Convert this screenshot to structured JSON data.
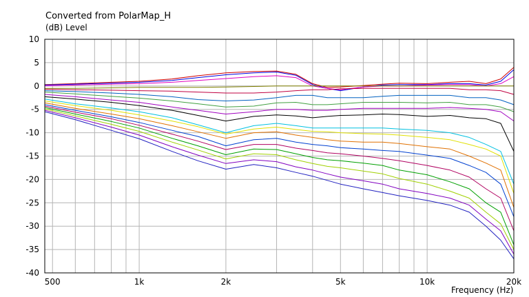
{
  "chart_data": {
    "type": "line",
    "title": "Converted from PolarMap_H",
    "ylabel": "(dB)  Level",
    "xlabel": "Frequency  (Hz)",
    "xscale": "log",
    "xlim": [
      470,
      20000
    ],
    "ylim": [
      -40,
      10
    ],
    "grid": true,
    "legend": "none",
    "x_tick_labels": [
      {
        "value": 500,
        "label": "500"
      },
      {
        "value": 1000,
        "label": "1k"
      },
      {
        "value": 2000,
        "label": "2k"
      },
      {
        "value": 5000,
        "label": "5k"
      },
      {
        "value": 10000,
        "label": "10k"
      },
      {
        "value": 20000,
        "label": "20k"
      }
    ],
    "y_ticks": [
      10,
      5,
      0,
      -5,
      -10,
      -15,
      -20,
      -25,
      -30,
      -35,
      -40
    ],
    "x_minor_grid": [
      600,
      700,
      800,
      900,
      3000,
      4000,
      6000,
      7000,
      8000,
      9000
    ],
    "x": [
      470,
      600,
      800,
      1000,
      1300,
      1600,
      2000,
      2500,
      3000,
      3500,
      4000,
      4500,
      5000,
      6000,
      7000,
      8000,
      10000,
      12000,
      14000,
      16000,
      18000,
      20000
    ],
    "series": [
      {
        "color": "#d00000",
        "values": [
          0.3,
          0.5,
          0.8,
          1.0,
          1.5,
          2.2,
          2.8,
          3.1,
          3.2,
          2.5,
          0.5,
          -0.3,
          -0.2,
          0.1,
          0.4,
          0.6,
          0.5,
          0.8,
          1.0,
          0.5,
          1.5,
          4.0
        ]
      },
      {
        "color": "#0000e0",
        "values": [
          0.2,
          0.4,
          0.6,
          0.8,
          1.2,
          1.8,
          2.4,
          2.8,
          3.0,
          2.3,
          0.3,
          -0.5,
          -1.0,
          -0.2,
          0.2,
          0.3,
          0.3,
          0.5,
          0.5,
          0.2,
          1.0,
          3.5
        ]
      },
      {
        "color": "#e000c0",
        "values": [
          0.0,
          0.2,
          0.4,
          0.5,
          0.8,
          1.2,
          1.6,
          2.0,
          2.2,
          1.8,
          0.0,
          -0.5,
          -0.8,
          -0.2,
          0.0,
          0.0,
          0.2,
          0.3,
          0.3,
          0.0,
          0.5,
          2.0
        ]
      },
      {
        "color": "#808000",
        "values": [
          -0.5,
          -0.5,
          -0.4,
          -0.3,
          -0.3,
          -0.3,
          -0.2,
          -0.1,
          0.0,
          0.0,
          0.0,
          0.0,
          0.0,
          0.0,
          0.0,
          0.0,
          0.0,
          0.0,
          0.0,
          0.0,
          0.0,
          0.0
        ]
      },
      {
        "color": "#c00040",
        "values": [
          -0.7,
          -0.8,
          -0.9,
          -1.0,
          -1.1,
          -1.3,
          -1.5,
          -1.5,
          -1.3,
          -1.0,
          -0.8,
          -0.8,
          -0.6,
          -0.5,
          -0.5,
          -0.5,
          -0.5,
          -0.5,
          -0.8,
          -0.8,
          -1.0,
          -1.8
        ]
      },
      {
        "color": "#0060c0",
        "values": [
          -1.0,
          -1.2,
          -1.5,
          -1.8,
          -2.3,
          -2.9,
          -3.2,
          -3.0,
          -2.5,
          -2.0,
          -2.0,
          -2.5,
          -2.5,
          -2.5,
          -2.2,
          -2.0,
          -2.0,
          -2.0,
          -2.5,
          -2.5,
          -3.0,
          -4.0
        ]
      },
      {
        "color": "#40a040",
        "values": [
          -1.3,
          -1.7,
          -2.2,
          -2.6,
          -3.2,
          -3.8,
          -4.5,
          -4.3,
          -3.6,
          -3.5,
          -4.0,
          -4.0,
          -3.8,
          -3.5,
          -3.5,
          -3.5,
          -3.6,
          -3.5,
          -4.0,
          -4.0,
          -4.5,
          -5.5
        ]
      },
      {
        "color": "#a000c0",
        "values": [
          -1.8,
          -2.3,
          -3.0,
          -3.5,
          -4.5,
          -5.2,
          -6.0,
          -5.5,
          -5.0,
          -5.0,
          -5.2,
          -5.2,
          -5.0,
          -4.8,
          -4.8,
          -4.8,
          -4.8,
          -4.6,
          -4.8,
          -5.0,
          -5.5,
          -7.5
        ]
      },
      {
        "color": "#000000",
        "values": [
          -2.3,
          -2.8,
          -3.5,
          -4.2,
          -5.2,
          -6.3,
          -7.5,
          -6.5,
          -6.2,
          -6.4,
          -6.8,
          -6.5,
          -6.3,
          -6.2,
          -6.0,
          -6.1,
          -6.5,
          -6.3,
          -6.8,
          -7.0,
          -8.0,
          -14.0
        ]
      },
      {
        "color": "#00c0e0",
        "values": [
          -2.8,
          -3.8,
          -4.7,
          -5.5,
          -6.8,
          -8.3,
          -10.0,
          -8.5,
          -8.0,
          -8.5,
          -9.0,
          -9.0,
          -9.0,
          -9.0,
          -9.0,
          -9.2,
          -9.5,
          -10.0,
          -11.0,
          -12.5,
          -14.0,
          -21.0
        ]
      },
      {
        "color": "#e0e000",
        "values": [
          -3.2,
          -4.2,
          -5.2,
          -6.2,
          -7.5,
          -8.7,
          -10.3,
          -9.2,
          -8.8,
          -9.3,
          -9.7,
          -9.8,
          -10.0,
          -10.2,
          -10.3,
          -10.5,
          -11.0,
          -11.5,
          -12.5,
          -13.5,
          -15.0,
          -23.0
        ]
      },
      {
        "color": "#e07000",
        "values": [
          -3.6,
          -4.8,
          -6.0,
          -7.0,
          -8.5,
          -9.8,
          -11.2,
          -10.0,
          -9.8,
          -10.5,
          -11.0,
          -11.5,
          -11.8,
          -12.0,
          -12.0,
          -12.3,
          -13.0,
          -13.5,
          -15.0,
          -16.5,
          -18.0,
          -26.0
        ]
      },
      {
        "color": "#0040d0",
        "values": [
          -4.0,
          -5.2,
          -6.6,
          -7.8,
          -9.5,
          -10.8,
          -12.8,
          -11.5,
          -11.2,
          -12.0,
          -12.5,
          -12.8,
          -13.2,
          -13.5,
          -13.8,
          -14.0,
          -14.8,
          -15.5,
          -17.0,
          -18.5,
          -21.0,
          -28.0
        ]
      },
      {
        "color": "#b00060",
        "values": [
          -4.3,
          -5.6,
          -7.0,
          -8.4,
          -10.3,
          -11.8,
          -13.6,
          -12.5,
          -12.5,
          -13.3,
          -13.8,
          -14.3,
          -14.5,
          -15.0,
          -15.5,
          -16.0,
          -17.0,
          -18.0,
          -19.5,
          -22.0,
          -24.0,
          -31.0
        ]
      },
      {
        "color": "#00a000",
        "values": [
          -4.6,
          -6.0,
          -7.6,
          -9.0,
          -11.2,
          -12.8,
          -14.7,
          -13.5,
          -13.6,
          -14.5,
          -15.3,
          -15.8,
          -16.0,
          -16.5,
          -17.0,
          -18.0,
          -19.0,
          -20.5,
          -22.0,
          -25.0,
          -27.0,
          -34.0
        ]
      },
      {
        "color": "#a0d000",
        "values": [
          -4.9,
          -6.4,
          -8.2,
          -9.7,
          -12.0,
          -13.7,
          -15.6,
          -14.5,
          -14.7,
          -15.8,
          -16.6,
          -17.2,
          -17.5,
          -18.2,
          -18.8,
          -19.8,
          -21.0,
          -22.5,
          -24.0,
          -27.0,
          -29.5,
          -35.0
        ]
      },
      {
        "color": "#8000c0",
        "values": [
          -5.2,
          -6.8,
          -8.8,
          -10.5,
          -13.0,
          -14.8,
          -16.6,
          -15.8,
          -16.2,
          -17.3,
          -18.0,
          -18.8,
          -19.5,
          -20.3,
          -21.0,
          -22.0,
          -23.0,
          -24.0,
          -25.5,
          -28.5,
          -31.0,
          -36.0
        ]
      },
      {
        "color": "#2020c0",
        "values": [
          -5.5,
          -7.2,
          -9.5,
          -11.3,
          -14.0,
          -16.0,
          -17.8,
          -16.8,
          -17.5,
          -18.5,
          -19.3,
          -20.2,
          -21.0,
          -22.0,
          -22.8,
          -23.5,
          -24.5,
          -25.5,
          -27.0,
          -30.0,
          -33.0,
          -37.0
        ]
      }
    ]
  }
}
